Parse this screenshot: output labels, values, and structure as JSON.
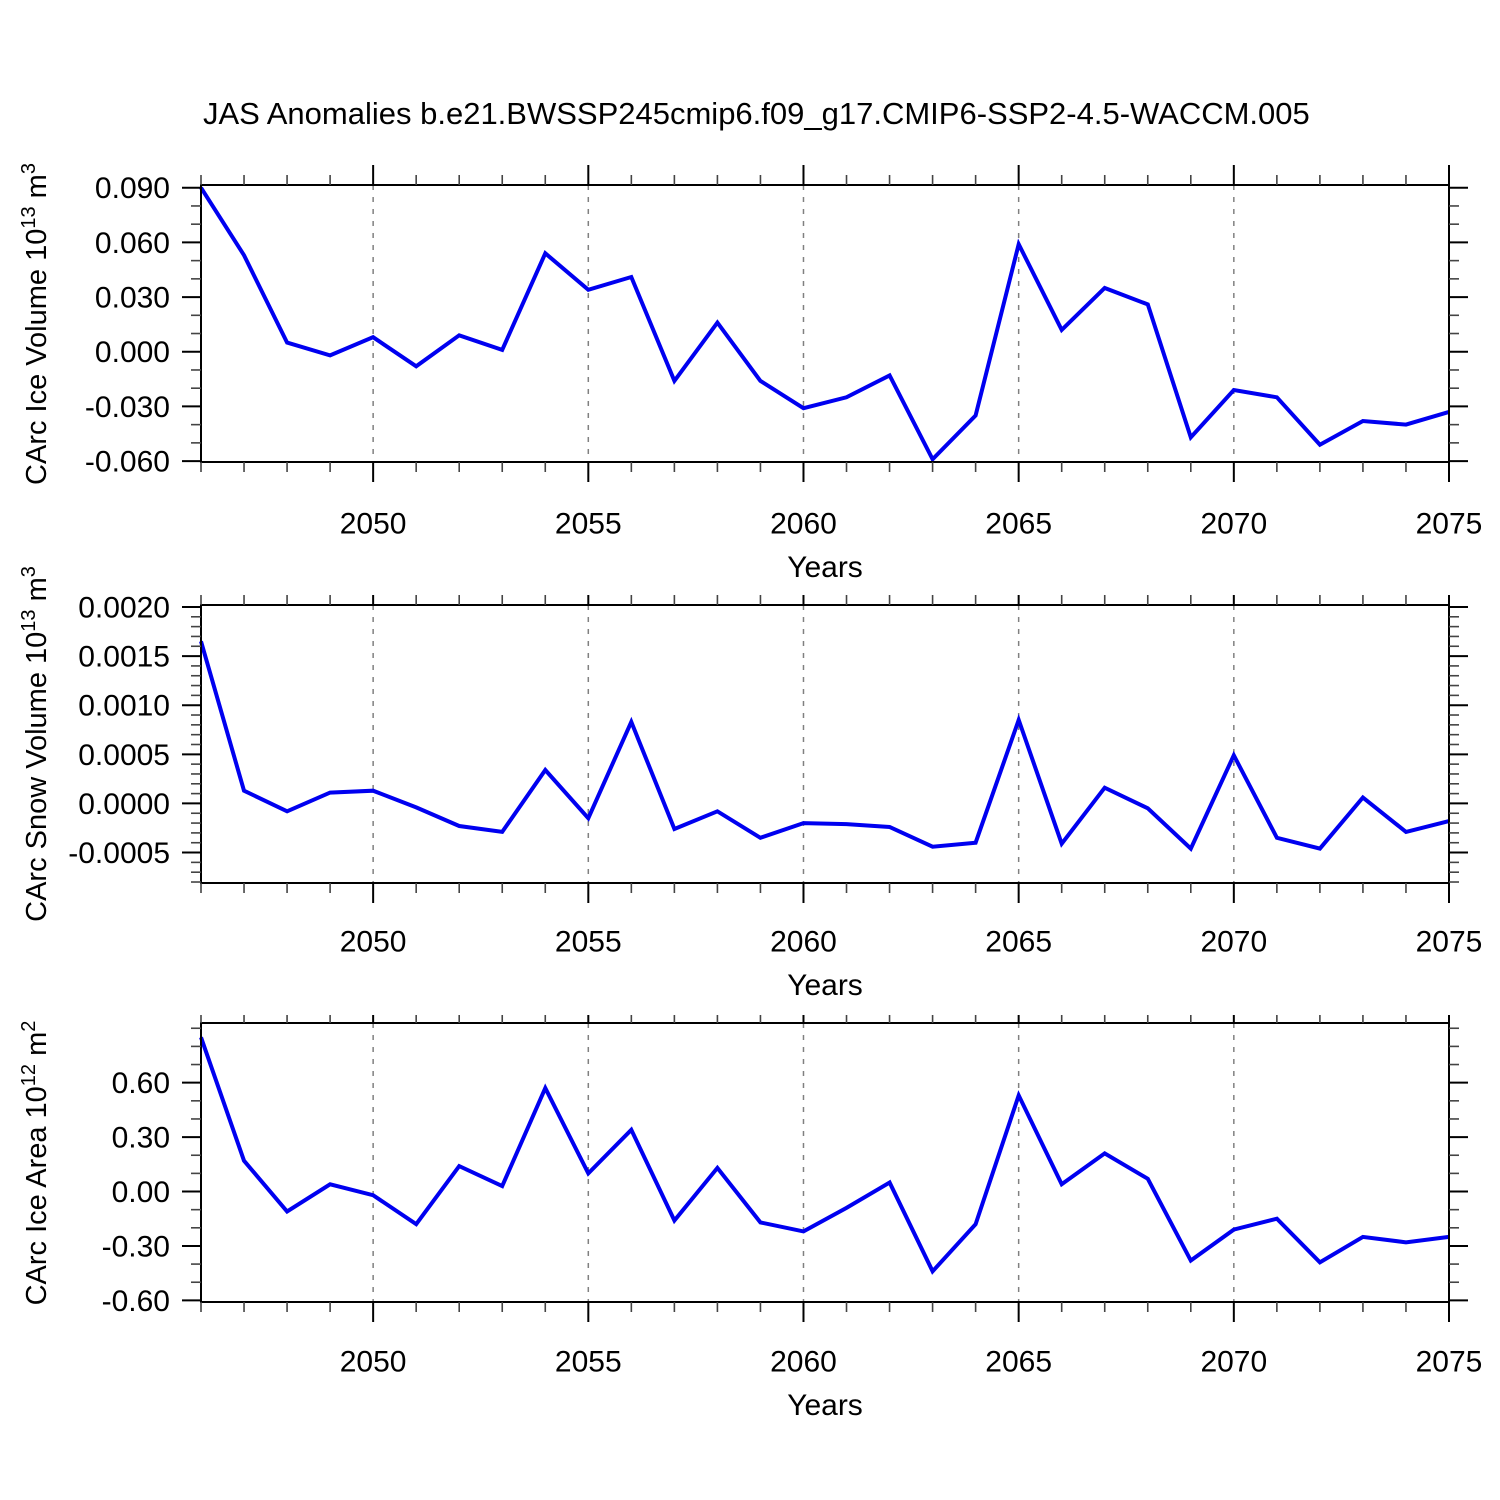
{
  "title": "JAS Anomalies b.e21.BWSSP245cmip6.f09_g17.CMIP6-SSP2-4.5-WACCM.005",
  "style": {
    "line_color": "#0000f0",
    "axis_color": "#000000",
    "grid_color": "#808080",
    "minor_tick_color": "#444444",
    "background": "#ffffff"
  },
  "chart_data": [
    {
      "id": "ice-volume",
      "type": "line",
      "title": "",
      "xlabel": "Years",
      "ylabel": {
        "prefix": "CArc Ice Volume 10",
        "exp": "13",
        "mid": " m",
        "exp2": "3"
      },
      "xlim": [
        2046,
        2075
      ],
      "ylim": [
        -0.0605,
        0.0915
      ],
      "xticks": [
        {
          "v": 2050,
          "label": "2050"
        },
        {
          "v": 2055,
          "label": "2055"
        },
        {
          "v": 2060,
          "label": "2060"
        },
        {
          "v": 2065,
          "label": "2065"
        },
        {
          "v": 2070,
          "label": "2070"
        },
        {
          "v": 2075,
          "label": "2075"
        }
      ],
      "grid_x": [
        2050,
        2055,
        2060,
        2065,
        2070
      ],
      "x_minor_step": 1,
      "yticks": [
        {
          "v": 0.09,
          "label": "0.090"
        },
        {
          "v": 0.06,
          "label": "0.060"
        },
        {
          "v": 0.03,
          "label": "0.030"
        },
        {
          "v": 0.0,
          "label": "0.000"
        },
        {
          "v": -0.03,
          "label": "-0.030"
        },
        {
          "v": -0.06,
          "label": "-0.060"
        }
      ],
      "y_minor_step": 0.01,
      "x": [
        2046,
        2047,
        2048,
        2049,
        2050,
        2051,
        2052,
        2053,
        2054,
        2055,
        2056,
        2057,
        2058,
        2059,
        2060,
        2061,
        2062,
        2063,
        2064,
        2065,
        2066,
        2067,
        2068,
        2069,
        2070,
        2071,
        2072,
        2073,
        2074,
        2075
      ],
      "values": [
        0.09,
        0.053,
        0.005,
        -0.002,
        0.008,
        -0.008,
        0.009,
        0.001,
        0.054,
        0.034,
        0.041,
        -0.016,
        0.016,
        -0.016,
        -0.031,
        -0.025,
        -0.013,
        -0.059,
        -0.035,
        0.059,
        0.012,
        0.035,
        0.026,
        -0.047,
        -0.021,
        -0.025,
        -0.051,
        -0.038,
        -0.04,
        -0.033
      ],
      "grid": "vertical-dashed",
      "legend": "none"
    },
    {
      "id": "snow-volume",
      "type": "line",
      "title": "",
      "xlabel": "Years",
      "ylabel": {
        "prefix": "CArc Snow Volume 10",
        "exp": "13",
        "mid": " m",
        "exp2": "3"
      },
      "xlim": [
        2046,
        2075
      ],
      "ylim": [
        -0.00081,
        0.00202
      ],
      "xticks": [
        {
          "v": 2050,
          "label": "2050"
        },
        {
          "v": 2055,
          "label": "2055"
        },
        {
          "v": 2060,
          "label": "2060"
        },
        {
          "v": 2065,
          "label": "2065"
        },
        {
          "v": 2070,
          "label": "2070"
        },
        {
          "v": 2075,
          "label": "2075"
        }
      ],
      "grid_x": [
        2050,
        2055,
        2060,
        2065,
        2070
      ],
      "x_minor_step": 1,
      "yticks": [
        {
          "v": 0.002,
          "label": "0.0020"
        },
        {
          "v": 0.0015,
          "label": "0.0015"
        },
        {
          "v": 0.001,
          "label": "0.0010"
        },
        {
          "v": 0.0005,
          "label": "0.0005"
        },
        {
          "v": 0.0,
          "label": "0.0000"
        },
        {
          "v": -0.0005,
          "label": "-0.0005"
        }
      ],
      "y_minor_step": 0.0001,
      "x": [
        2046,
        2047,
        2048,
        2049,
        2050,
        2051,
        2052,
        2053,
        2054,
        2055,
        2056,
        2057,
        2058,
        2059,
        2060,
        2061,
        2062,
        2063,
        2064,
        2065,
        2066,
        2067,
        2068,
        2069,
        2070,
        2071,
        2072,
        2073,
        2074,
        2075
      ],
      "values": [
        0.00165,
        0.00013,
        -8e-05,
        0.00011,
        0.00013,
        -4e-05,
        -0.00023,
        -0.00029,
        0.00034,
        -0.00015,
        0.00083,
        -0.00026,
        -8e-05,
        -0.00035,
        -0.0002,
        -0.00021,
        -0.00024,
        -0.00044,
        -0.0004,
        0.00085,
        -0.00041,
        0.00016,
        -5e-05,
        -0.00046,
        0.00049,
        -0.00035,
        -0.00046,
        6e-05,
        -0.00029,
        -0.00018
      ],
      "grid": "vertical-dashed",
      "legend": "none"
    },
    {
      "id": "ice-area",
      "type": "line",
      "title": "",
      "xlabel": "Years",
      "ylabel": {
        "prefix": "CArc Ice Area 10",
        "exp": "12",
        "mid": " m",
        "exp2": "2"
      },
      "xlim": [
        2046,
        2075
      ],
      "ylim": [
        -0.609,
        0.929
      ],
      "xticks": [
        {
          "v": 2050,
          "label": "2050"
        },
        {
          "v": 2055,
          "label": "2055"
        },
        {
          "v": 2060,
          "label": "2060"
        },
        {
          "v": 2065,
          "label": "2065"
        },
        {
          "v": 2070,
          "label": "2070"
        },
        {
          "v": 2075,
          "label": "2075"
        }
      ],
      "grid_x": [
        2050,
        2055,
        2060,
        2065,
        2070
      ],
      "x_minor_step": 1,
      "yticks": [
        {
          "v": 0.6,
          "label": "0.60"
        },
        {
          "v": 0.3,
          "label": "0.30"
        },
        {
          "v": 0.0,
          "label": "0.00"
        },
        {
          "v": -0.3,
          "label": "-0.30"
        },
        {
          "v": -0.6,
          "label": "-0.60"
        }
      ],
      "y_minor_step": 0.1,
      "x": [
        2046,
        2047,
        2048,
        2049,
        2050,
        2051,
        2052,
        2053,
        2054,
        2055,
        2056,
        2057,
        2058,
        2059,
        2060,
        2061,
        2062,
        2063,
        2064,
        2065,
        2066,
        2067,
        2068,
        2069,
        2070,
        2071,
        2072,
        2073,
        2074,
        2075
      ],
      "values": [
        0.85,
        0.17,
        -0.11,
        0.04,
        -0.02,
        -0.18,
        0.14,
        0.03,
        0.57,
        0.1,
        0.34,
        -0.16,
        0.13,
        -0.17,
        -0.22,
        -0.09,
        0.05,
        -0.44,
        -0.18,
        0.53,
        0.04,
        0.21,
        0.07,
        -0.38,
        -0.21,
        -0.15,
        -0.39,
        -0.25,
        -0.28,
        -0.25
      ],
      "grid": "vertical-dashed",
      "legend": "none"
    }
  ]
}
